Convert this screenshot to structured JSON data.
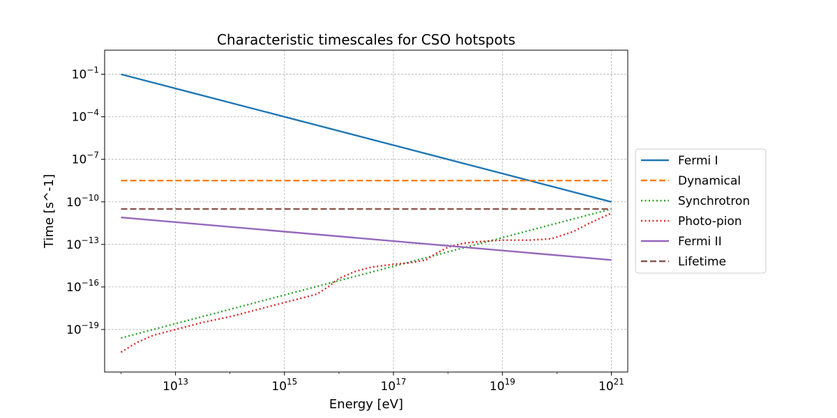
{
  "chart_data": {
    "type": "line",
    "title": "Characteristic timescales for CSO hotspots",
    "xlabel": "Energy [eV]",
    "ylabel": "Time [s^-1]",
    "xscale": "log",
    "yscale": "log",
    "xlim": [
      500000000000.0,
      2e+21
    ],
    "ylim": [
      1e-22,
      5.0
    ],
    "grid": true,
    "legend_position": "outside-right",
    "x_ticks": [
      {
        "exp": 13,
        "label": "10",
        "sup": "13"
      },
      {
        "exp": 15,
        "label": "10",
        "sup": "15"
      },
      {
        "exp": 17,
        "label": "10",
        "sup": "17"
      },
      {
        "exp": 19,
        "label": "10",
        "sup": "19"
      },
      {
        "exp": 21,
        "label": "10",
        "sup": "21"
      }
    ],
    "y_ticks": [
      {
        "exp": -1,
        "label": "10",
        "sup": "−1"
      },
      {
        "exp": -4,
        "label": "10",
        "sup": "−4"
      },
      {
        "exp": -7,
        "label": "10",
        "sup": "−7"
      },
      {
        "exp": -10,
        "label": "10",
        "sup": "−10"
      },
      {
        "exp": -13,
        "label": "10",
        "sup": "−13"
      },
      {
        "exp": -16,
        "label": "10",
        "sup": "−16"
      },
      {
        "exp": -19,
        "label": "10",
        "sup": "−19"
      }
    ],
    "series": [
      {
        "name": "Fermi I",
        "color": "#1f77b4",
        "style": "solid",
        "points_log10": [
          [
            12,
            -1.0
          ],
          [
            21,
            -10.0
          ]
        ]
      },
      {
        "name": "Dynamical",
        "color": "#ff7f0e",
        "style": "dashed",
        "points_log10": [
          [
            12,
            -8.5
          ],
          [
            21,
            -8.5
          ]
        ]
      },
      {
        "name": "Synchrotron",
        "color": "#2ca02c",
        "style": "dotted",
        "points_log10": [
          [
            12,
            -19.6
          ],
          [
            21,
            -10.5
          ]
        ]
      },
      {
        "name": "Photo-pion",
        "color": "#d62728",
        "style": "dotted",
        "points_log10": [
          [
            12,
            -20.6
          ],
          [
            12.3,
            -19.9
          ],
          [
            12.6,
            -19.4
          ],
          [
            13,
            -19.0
          ],
          [
            13.5,
            -18.5
          ],
          [
            14,
            -18.1
          ],
          [
            14.5,
            -17.6
          ],
          [
            15,
            -17.1
          ],
          [
            15.3,
            -16.8
          ],
          [
            15.6,
            -16.5
          ],
          [
            15.8,
            -16.0
          ],
          [
            16.0,
            -15.4
          ],
          [
            16.3,
            -14.9
          ],
          [
            16.6,
            -14.6
          ],
          [
            17,
            -14.4
          ],
          [
            17.3,
            -14.3
          ],
          [
            17.6,
            -14.1
          ],
          [
            17.8,
            -13.6
          ],
          [
            18.0,
            -13.2
          ],
          [
            18.3,
            -12.9
          ],
          [
            18.6,
            -12.8
          ],
          [
            19.0,
            -12.7
          ],
          [
            19.5,
            -12.7
          ],
          [
            19.9,
            -12.6
          ],
          [
            20.3,
            -12.1
          ],
          [
            20.6,
            -11.5
          ],
          [
            21,
            -10.8
          ]
        ]
      },
      {
        "name": "Fermi II",
        "color": "#9467bd",
        "style": "solid",
        "points_log10": [
          [
            12,
            -11.1
          ],
          [
            21,
            -14.1
          ]
        ]
      },
      {
        "name": "Lifetime",
        "color": "#8c564b",
        "style": "dashed",
        "points_log10": [
          [
            12,
            -10.5
          ],
          [
            21,
            -10.5
          ]
        ]
      }
    ]
  }
}
